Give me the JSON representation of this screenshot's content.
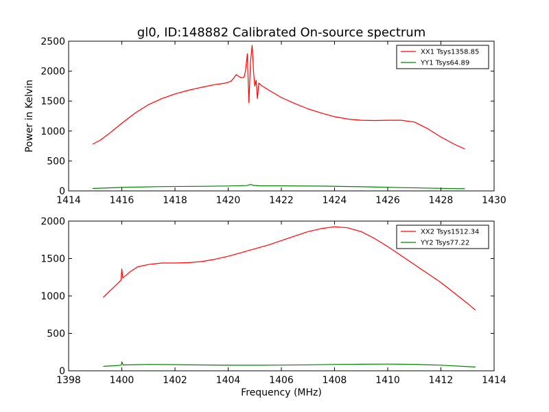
{
  "figure": {
    "title": "gl0, ID:148882 Calibrated On-source spectrum",
    "ylabel": "Power in Kelvin",
    "xlabel": "Frequency (MHz)"
  },
  "chart_data": [
    {
      "type": "line",
      "title": "gl0, ID:148882 Calibrated On-source spectrum",
      "xlabel": "",
      "ylabel": "Power in Kelvin",
      "xlim": [
        1414,
        1430
      ],
      "ylim": [
        0,
        2500
      ],
      "xticks": [
        1414,
        1416,
        1418,
        1420,
        1422,
        1424,
        1426,
        1428,
        1430
      ],
      "yticks": [
        0,
        500,
        1000,
        1500,
        2000,
        2500
      ],
      "legend": "top-right",
      "series": [
        {
          "name": "XX1 Tsys1358.85",
          "color": "#ff0000",
          "points": [
            [
              1414.9,
              780
            ],
            [
              1415.2,
              850
            ],
            [
              1415.5,
              950
            ],
            [
              1416.0,
              1130
            ],
            [
              1416.5,
              1300
            ],
            [
              1417.0,
              1440
            ],
            [
              1417.5,
              1540
            ],
            [
              1418.0,
              1620
            ],
            [
              1418.5,
              1680
            ],
            [
              1419.0,
              1730
            ],
            [
              1419.5,
              1775
            ],
            [
              1419.9,
              1800
            ],
            [
              1420.1,
              1830
            ],
            [
              1420.2,
              1880
            ],
            [
              1420.3,
              1940
            ],
            [
              1420.4,
              1910
            ],
            [
              1420.5,
              1890
            ],
            [
              1420.6,
              1900
            ],
            [
              1420.65,
              2000
            ],
            [
              1420.72,
              2290
            ],
            [
              1420.78,
              1470
            ],
            [
              1420.84,
              2150
            ],
            [
              1420.9,
              2430
            ],
            [
              1420.96,
              1950
            ],
            [
              1421.0,
              1750
            ],
            [
              1421.05,
              1850
            ],
            [
              1421.1,
              1540
            ],
            [
              1421.15,
              1800
            ],
            [
              1421.25,
              1760
            ],
            [
              1421.5,
              1690
            ],
            [
              1422.0,
              1560
            ],
            [
              1422.5,
              1460
            ],
            [
              1423.0,
              1370
            ],
            [
              1423.5,
              1300
            ],
            [
              1424.0,
              1240
            ],
            [
              1424.5,
              1200
            ],
            [
              1425.0,
              1180
            ],
            [
              1425.5,
              1175
            ],
            [
              1426.0,
              1180
            ],
            [
              1426.5,
              1180
            ],
            [
              1427.0,
              1150
            ],
            [
              1427.5,
              1040
            ],
            [
              1428.0,
              900
            ],
            [
              1428.5,
              780
            ],
            [
              1428.9,
              700
            ]
          ]
        },
        {
          "name": "YY1 Tsys64.89",
          "color": "#008000",
          "points": [
            [
              1414.9,
              40
            ],
            [
              1416.0,
              58
            ],
            [
              1417.5,
              72
            ],
            [
              1419.0,
              77
            ],
            [
              1420.0,
              82
            ],
            [
              1420.7,
              90
            ],
            [
              1420.85,
              108
            ],
            [
              1420.95,
              92
            ],
            [
              1421.2,
              85
            ],
            [
              1422.0,
              85
            ],
            [
              1423.5,
              80
            ],
            [
              1425.0,
              70
            ],
            [
              1426.5,
              55
            ],
            [
              1428.0,
              42
            ],
            [
              1428.9,
              36
            ]
          ]
        }
      ]
    },
    {
      "type": "line",
      "title": "",
      "xlabel": "Frequency (MHz)",
      "ylabel": "",
      "xlim": [
        1398,
        1414
      ],
      "ylim": [
        0,
        2000
      ],
      "xticks": [
        1398,
        1400,
        1402,
        1404,
        1406,
        1408,
        1410,
        1412,
        1414
      ],
      "yticks": [
        0,
        500,
        1000,
        1500,
        2000
      ],
      "legend": "top-right",
      "series": [
        {
          "name": "XX2 Tsys1512.34",
          "color": "#ff0000",
          "points": [
            [
              1399.3,
              980
            ],
            [
              1399.5,
              1050
            ],
            [
              1399.8,
              1150
            ],
            [
              1399.97,
              1210
            ],
            [
              1400.0,
              1360
            ],
            [
              1400.04,
              1240
            ],
            [
              1400.3,
              1320
            ],
            [
              1400.6,
              1390
            ],
            [
              1401.0,
              1420
            ],
            [
              1401.5,
              1440
            ],
            [
              1402.0,
              1440
            ],
            [
              1402.5,
              1445
            ],
            [
              1403.0,
              1460
            ],
            [
              1403.5,
              1490
            ],
            [
              1404.0,
              1530
            ],
            [
              1404.5,
              1580
            ],
            [
              1405.0,
              1630
            ],
            [
              1405.5,
              1680
            ],
            [
              1406.0,
              1740
            ],
            [
              1406.5,
              1800
            ],
            [
              1407.0,
              1860
            ],
            [
              1407.5,
              1900
            ],
            [
              1408.0,
              1925
            ],
            [
              1408.5,
              1910
            ],
            [
              1409.0,
              1860
            ],
            [
              1409.5,
              1770
            ],
            [
              1410.0,
              1660
            ],
            [
              1410.5,
              1540
            ],
            [
              1411.0,
              1420
            ],
            [
              1411.5,
              1300
            ],
            [
              1412.0,
              1180
            ],
            [
              1412.5,
              1040
            ],
            [
              1413.0,
              900
            ],
            [
              1413.3,
              810
            ]
          ]
        },
        {
          "name": "YY2 Tsys77.22",
          "color": "#008000",
          "points": [
            [
              1399.3,
              60
            ],
            [
              1399.8,
              70
            ],
            [
              1399.98,
              75
            ],
            [
              1400.0,
              120
            ],
            [
              1400.05,
              78
            ],
            [
              1400.5,
              82
            ],
            [
              1401.0,
              85
            ],
            [
              1402.0,
              83
            ],
            [
              1403.0,
              78
            ],
            [
              1404.0,
              74
            ],
            [
              1405.0,
              74
            ],
            [
              1406.0,
              76
            ],
            [
              1407.0,
              80
            ],
            [
              1408.0,
              85
            ],
            [
              1409.0,
              88
            ],
            [
              1410.0,
              90
            ],
            [
              1411.0,
              86
            ],
            [
              1412.0,
              75
            ],
            [
              1413.3,
              50
            ]
          ]
        }
      ]
    }
  ]
}
